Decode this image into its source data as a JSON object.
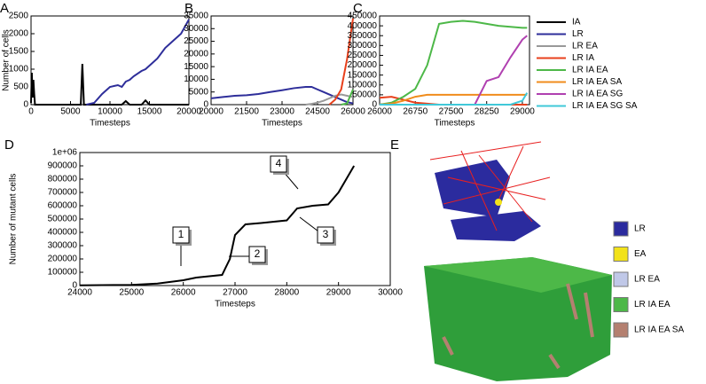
{
  "chart_data": [
    {
      "panel": "A",
      "type": "line",
      "xlabel": "Timesteps",
      "ylabel": "Number of cells",
      "xlim": [
        0,
        20000
      ],
      "xticks": [
        0,
        5000,
        10000,
        15000,
        20000
      ],
      "ylim": [
        0,
        2500
      ],
      "yticks": [
        0,
        500,
        1000,
        1500,
        2000,
        2500
      ],
      "legend": "none",
      "x": [
        0,
        100,
        200,
        300,
        400,
        500,
        1000,
        6000,
        6300,
        6500,
        6700,
        7000,
        8000,
        9000,
        10000,
        11000,
        11500,
        12000,
        12500,
        13000,
        14000,
        14500,
        15000,
        16000,
        17000,
        18000,
        19000,
        19500,
        20000
      ],
      "series": [
        {
          "color": "#000000",
          "values": [
            50,
            900,
            200,
            700,
            300,
            0,
            0,
            0,
            0,
            1150,
            0,
            0,
            0,
            0,
            0,
            0,
            0,
            100,
            0,
            0,
            0,
            120,
            0,
            0,
            0,
            0,
            0,
            0,
            0
          ]
        },
        {
          "color": "#2e2e9a",
          "values": [
            null,
            null,
            null,
            null,
            null,
            null,
            null,
            null,
            null,
            null,
            null,
            0,
            50,
            300,
            500,
            550,
            500,
            650,
            700,
            800,
            950,
            1000,
            1100,
            1300,
            1600,
            1800,
            2000,
            2200,
            2400
          ]
        }
      ]
    },
    {
      "panel": "B",
      "type": "line",
      "xlabel": "Timesteps",
      "xlim": [
        20000,
        26000
      ],
      "xticks": [
        20000,
        21500,
        23000,
        24500,
        26000
      ],
      "ylim": [
        0,
        35000
      ],
      "yticks": [
        0,
        5000,
        10000,
        15000,
        20000,
        25000,
        30000,
        35000
      ],
      "legend": "none",
      "x": [
        20000,
        20500,
        21000,
        21500,
        22000,
        22500,
        23000,
        23500,
        24000,
        24250,
        24500,
        24750,
        25000,
        25250,
        25500,
        25750,
        26000
      ],
      "series": [
        {
          "color": "#2e2e9a",
          "values": [
            2500,
            3000,
            3500,
            3700,
            4200,
            5000,
            5700,
            6500,
            7000,
            7000,
            6000,
            5000,
            4000,
            3000,
            2000,
            1000,
            500
          ]
        },
        {
          "color": "#999999",
          "values": [
            null,
            null,
            null,
            null,
            null,
            null,
            null,
            null,
            0,
            300,
            800,
            1500,
            2500,
            3500,
            4000,
            3500,
            3000
          ]
        },
        {
          "color": "#e8401c",
          "values": [
            null,
            null,
            null,
            null,
            null,
            null,
            null,
            null,
            null,
            null,
            null,
            null,
            0,
            2000,
            6000,
            18000,
            34000
          ]
        },
        {
          "color": "#4db848",
          "values": [
            null,
            null,
            null,
            null,
            null,
            null,
            null,
            null,
            null,
            null,
            null,
            null,
            null,
            null,
            0,
            500,
            6000
          ]
        }
      ]
    },
    {
      "panel": "C",
      "type": "line",
      "xlabel": "Timesteps",
      "xlim": [
        26000,
        29150
      ],
      "xticks": [
        26000,
        26750,
        27500,
        28250,
        29000
      ],
      "ylim": [
        0,
        450000
      ],
      "yticks": [
        0,
        50000,
        100000,
        150000,
        200000,
        250000,
        300000,
        350000,
        400000,
        450000
      ],
      "legend": "outside-right",
      "x": [
        26000,
        26250,
        26500,
        26750,
        27000,
        27250,
        27500,
        27750,
        28000,
        28250,
        28500,
        28750,
        29000,
        29100
      ],
      "series": [
        {
          "name": "IA",
          "color": "#000000",
          "values": [
            0,
            0,
            0,
            0,
            0,
            0,
            0,
            0,
            0,
            0,
            0,
            0,
            0,
            0
          ]
        },
        {
          "name": "LR",
          "color": "#2e2e9a",
          "values": [
            500,
            0,
            0,
            0,
            0,
            0,
            0,
            0,
            0,
            0,
            0,
            0,
            0,
            0
          ]
        },
        {
          "name": "LR EA",
          "color": "#999999",
          "values": [
            3000,
            1000,
            0,
            0,
            0,
            0,
            0,
            0,
            0,
            0,
            0,
            0,
            0,
            0
          ]
        },
        {
          "name": "LR IA",
          "color": "#e8401c",
          "values": [
            35000,
            40000,
            25000,
            10000,
            5000,
            0,
            0,
            0,
            0,
            0,
            0,
            0,
            0,
            0
          ]
        },
        {
          "name": "LR IA EA",
          "color": "#4db848",
          "values": [
            0,
            10000,
            40000,
            80000,
            200000,
            410000,
            420000,
            425000,
            420000,
            410000,
            400000,
            395000,
            390000,
            390000
          ]
        },
        {
          "name": "LR IA EA SA",
          "color": "#f08c1c",
          "values": [
            0,
            5000,
            20000,
            40000,
            50000,
            50000,
            50000,
            50000,
            50000,
            50000,
            50000,
            50000,
            50000,
            50000
          ]
        },
        {
          "name": "LR IA EA SG",
          "color": "#b040b0",
          "values": [
            0,
            0,
            0,
            0,
            0,
            0,
            0,
            0,
            0,
            120000,
            140000,
            240000,
            330000,
            350000
          ]
        },
        {
          "name": "LR IA EA SG SA",
          "color": "#40c8d8",
          "values": [
            0,
            0,
            0,
            0,
            0,
            0,
            0,
            0,
            0,
            0,
            0,
            0,
            20000,
            60000
          ]
        }
      ]
    },
    {
      "panel": "D",
      "type": "line",
      "xlabel": "Timesteps",
      "ylabel": "Number of mutant cells",
      "xlim": [
        24000,
        30000
      ],
      "xticks": [
        24000,
        25000,
        26000,
        27000,
        28000,
        29000,
        30000
      ],
      "ylim": [
        0,
        1000000
      ],
      "yticks": [
        0,
        100000,
        200000,
        300000,
        400000,
        500000,
        600000,
        700000,
        800000,
        900000,
        {
          "value": 1000000,
          "label": "1e+06"
        }
      ],
      "legend": "none",
      "x": [
        24000,
        25000,
        25500,
        26000,
        26250,
        26500,
        26750,
        26900,
        27000,
        27200,
        27500,
        28000,
        28200,
        28500,
        28800,
        29000,
        29300
      ],
      "series": [
        {
          "color": "#000000",
          "values": [
            2000,
            5000,
            15000,
            40000,
            60000,
            70000,
            80000,
            200000,
            380000,
            460000,
            470000,
            490000,
            580000,
            600000,
            610000,
            700000,
            900000
          ]
        }
      ],
      "annotations": [
        "1",
        "2",
        "3",
        "4"
      ]
    }
  ],
  "panel_e": {
    "label": "E",
    "legend": [
      {
        "name": "LR",
        "color": "#2b2b9e"
      },
      {
        "name": "EA",
        "color": "#f2e21a"
      },
      {
        "name": "LR EA",
        "color": "#c0c8e8"
      },
      {
        "name": "LR IA EA",
        "color": "#4db848"
      },
      {
        "name": "LR IA EA SA",
        "color": "#b48070"
      }
    ]
  }
}
